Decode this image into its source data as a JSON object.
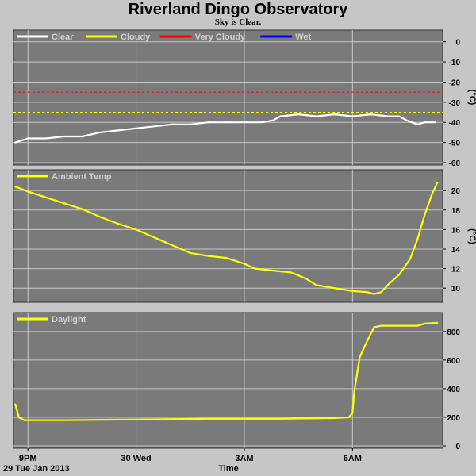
{
  "title": "Riverland Dingo Observatory",
  "subtitle": "Sky is Clear.",
  "colors": {
    "background": "#c6c6c6",
    "plot_bg": "#7a7a7a",
    "grid": "#c8c8c8",
    "clear": "#ffffff",
    "cloudy": "#ffff00",
    "very_cloudy": "#ff0000",
    "wet": "#0000ff"
  },
  "x_axis": {
    "label": "Time",
    "date_label": "29 Tue Jan 2013",
    "ticks": [
      {
        "hour": 21,
        "label": "9PM"
      },
      {
        "hour": 24,
        "label": "30 Wed"
      },
      {
        "hour": 27,
        "label": "3AM"
      },
      {
        "hour": 30,
        "label": "6AM"
      }
    ],
    "range": [
      20.6,
      32.5
    ]
  },
  "chart_data": [
    {
      "type": "line",
      "name": "sky",
      "ylabel": "(°C)",
      "ylim": [
        -60,
        5
      ],
      "yticks": [
        0,
        -10,
        -20,
        -30,
        -40,
        -50,
        -60
      ],
      "legend": [
        "Clear",
        "Cloudy",
        "Very Cloudy",
        "Wet"
      ],
      "legend_colors": [
        "#ffffff",
        "#ffff00",
        "#ff0000",
        "#0000ff"
      ],
      "thresholds": [
        {
          "name": "Very Cloudy",
          "value": -25,
          "color": "#ff0000"
        },
        {
          "name": "Cloudy",
          "value": -35,
          "color": "#ffff00"
        }
      ],
      "series": [
        {
          "name": "Clear",
          "color": "#ffffff",
          "x": [
            20.65,
            21.0,
            21.5,
            22.0,
            22.5,
            23.0,
            23.5,
            24.0,
            24.5,
            25.0,
            25.5,
            26.0,
            26.5,
            27.0,
            27.5,
            27.8,
            28.0,
            28.5,
            29.0,
            29.5,
            30.0,
            30.5,
            31.0,
            31.3,
            31.5,
            31.8,
            32.0,
            32.3
          ],
          "y": [
            -50,
            -48,
            -48,
            -47,
            -47,
            -45,
            -44,
            -43,
            -42,
            -41,
            -41,
            -40,
            -40,
            -40,
            -40,
            -39,
            -37,
            -36,
            -37,
            -36,
            -37,
            -36,
            -37,
            -37,
            -39,
            -41,
            -40,
            -40
          ]
        }
      ]
    },
    {
      "type": "line",
      "name": "ambient",
      "ylabel": "(°C)",
      "ylim": [
        8.8,
        21.8
      ],
      "yticks": [
        10,
        12,
        14,
        16,
        18,
        20
      ],
      "legend": [
        "Ambient Temp"
      ],
      "legend_colors": [
        "#ffff00"
      ],
      "series": [
        {
          "name": "Ambient Temp",
          "color": "#ffff00",
          "x": [
            20.65,
            21.0,
            21.5,
            22.0,
            22.5,
            23.0,
            23.5,
            24.0,
            24.5,
            25.0,
            25.5,
            26.0,
            26.5,
            27.0,
            27.3,
            27.8,
            28.3,
            28.7,
            29.0,
            29.5,
            30.0,
            30.4,
            30.6,
            30.8,
            31.0,
            31.3,
            31.6,
            31.8,
            32.0,
            32.2,
            32.35
          ],
          "y": [
            20.4,
            19.9,
            19.3,
            18.7,
            18.1,
            17.3,
            16.6,
            16.0,
            15.2,
            14.4,
            13.6,
            13.3,
            13.1,
            12.5,
            12.0,
            11.8,
            11.6,
            11.0,
            10.3,
            10.0,
            9.7,
            9.6,
            9.4,
            9.6,
            10.4,
            11.4,
            13.0,
            15.0,
            17.5,
            19.6,
            20.8
          ]
        }
      ]
    },
    {
      "type": "line",
      "name": "daylight",
      "ylabel": "",
      "ylim": [
        0,
        910
      ],
      "yticks": [
        0,
        200,
        400,
        600,
        800
      ],
      "legend": [
        "Daylight"
      ],
      "legend_colors": [
        "#ffff00"
      ],
      "series": [
        {
          "name": "Daylight",
          "color": "#ffff00",
          "x": [
            20.65,
            20.75,
            20.9,
            22.0,
            24.0,
            26.0,
            28.0,
            29.5,
            29.9,
            30.0,
            30.05,
            30.2,
            30.4,
            30.6,
            30.8,
            31.0,
            31.2,
            31.5,
            31.8,
            32.0,
            32.35
          ],
          "y": [
            290,
            200,
            180,
            180,
            185,
            190,
            190,
            195,
            200,
            230,
            380,
            620,
            730,
            830,
            840,
            840,
            840,
            840,
            840,
            855,
            860
          ]
        }
      ]
    }
  ]
}
